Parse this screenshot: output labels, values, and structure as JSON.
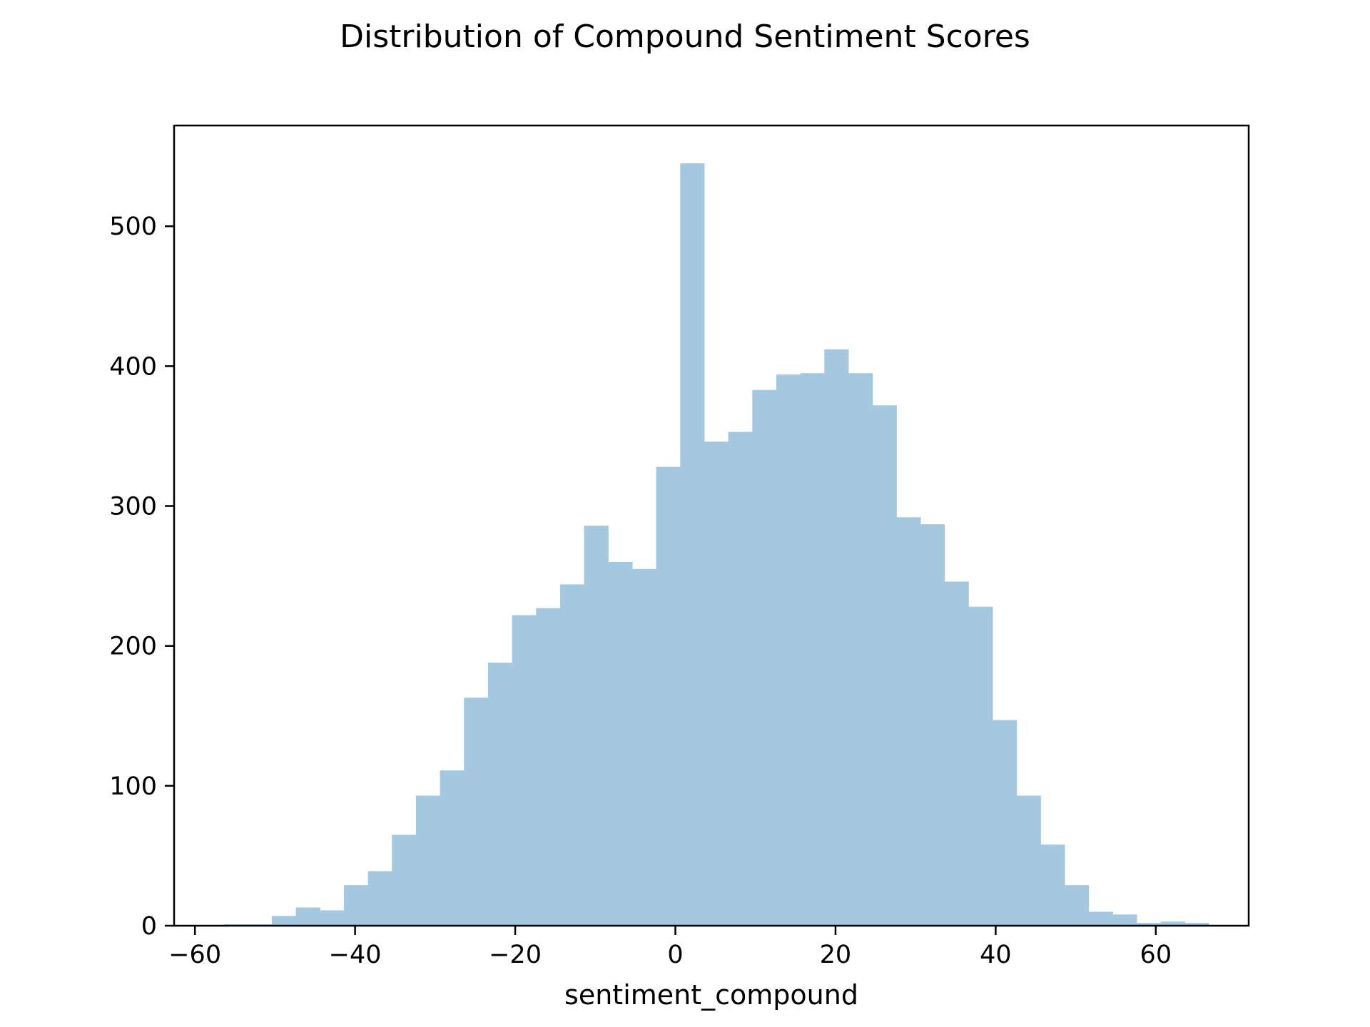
{
  "chart_data": {
    "type": "bar",
    "subtype": "histogram",
    "title": "Distribution of Compound Sentiment Scores",
    "xlabel": "sentiment_compound",
    "ylabel": "",
    "xlim": [
      -62.6,
      71.6
    ],
    "ylim": [
      0,
      572
    ],
    "x_ticks": [
      -60,
      -40,
      -20,
      0,
      20,
      40,
      60
    ],
    "x_tick_labels": [
      "−60",
      "−40",
      "−20",
      "0",
      "20",
      "40",
      "60"
    ],
    "y_ticks": [
      0,
      100,
      200,
      300,
      400,
      500
    ],
    "y_tick_labels": [
      "0",
      "100",
      "200",
      "300",
      "400",
      "500"
    ],
    "grid": false,
    "bar_color": "#a5c8e1",
    "bins": [
      {
        "x0": -56.4,
        "x1": -53.4,
        "count": 1
      },
      {
        "x0": -53.4,
        "x1": -50.4,
        "count": 1
      },
      {
        "x0": -50.4,
        "x1": -47.4,
        "count": 7
      },
      {
        "x0": -47.4,
        "x1": -44.4,
        "count": 13
      },
      {
        "x0": -44.4,
        "x1": -41.4,
        "count": 11
      },
      {
        "x0": -41.4,
        "x1": -38.4,
        "count": 29
      },
      {
        "x0": -38.4,
        "x1": -35.4,
        "count": 39
      },
      {
        "x0": -35.4,
        "x1": -32.4,
        "count": 65
      },
      {
        "x0": -32.4,
        "x1": -29.4,
        "count": 93
      },
      {
        "x0": -29.4,
        "x1": -26.4,
        "count": 111
      },
      {
        "x0": -26.4,
        "x1": -23.4,
        "count": 163
      },
      {
        "x0": -23.4,
        "x1": -20.4,
        "count": 188
      },
      {
        "x0": -20.4,
        "x1": -17.4,
        "count": 222
      },
      {
        "x0": -17.4,
        "x1": -14.4,
        "count": 227
      },
      {
        "x0": -14.4,
        "x1": -11.4,
        "count": 244
      },
      {
        "x0": -11.4,
        "x1": -8.4,
        "count": 286
      },
      {
        "x0": -8.4,
        "x1": -5.4,
        "count": 260
      },
      {
        "x0": -5.4,
        "x1": -2.4,
        "count": 255
      },
      {
        "x0": -2.4,
        "x1": 0.6,
        "count": 328
      },
      {
        "x0": 0.6,
        "x1": 3.6,
        "count": 545
      },
      {
        "x0": 3.6,
        "x1": 6.6,
        "count": 346
      },
      {
        "x0": 6.6,
        "x1": 9.6,
        "count": 353
      },
      {
        "x0": 9.6,
        "x1": 12.6,
        "count": 383
      },
      {
        "x0": 12.6,
        "x1": 15.6,
        "count": 394
      },
      {
        "x0": 15.6,
        "x1": 18.6,
        "count": 395
      },
      {
        "x0": 18.6,
        "x1": 21.6,
        "count": 412
      },
      {
        "x0": 21.6,
        "x1": 24.6,
        "count": 395
      },
      {
        "x0": 24.6,
        "x1": 27.6,
        "count": 372
      },
      {
        "x0": 27.6,
        "x1": 30.6,
        "count": 292
      },
      {
        "x0": 30.6,
        "x1": 33.6,
        "count": 287
      },
      {
        "x0": 33.6,
        "x1": 36.6,
        "count": 246
      },
      {
        "x0": 36.6,
        "x1": 39.6,
        "count": 228
      },
      {
        "x0": 39.6,
        "x1": 42.6,
        "count": 147
      },
      {
        "x0": 42.6,
        "x1": 45.6,
        "count": 93
      },
      {
        "x0": 45.6,
        "x1": 48.6,
        "count": 58
      },
      {
        "x0": 48.6,
        "x1": 51.6,
        "count": 29
      },
      {
        "x0": 51.6,
        "x1": 54.6,
        "count": 10
      },
      {
        "x0": 54.6,
        "x1": 57.6,
        "count": 8
      },
      {
        "x0": 57.6,
        "x1": 60.6,
        "count": 2
      },
      {
        "x0": 60.6,
        "x1": 63.6,
        "count": 3
      },
      {
        "x0": 63.6,
        "x1": 66.6,
        "count": 2
      }
    ]
  }
}
